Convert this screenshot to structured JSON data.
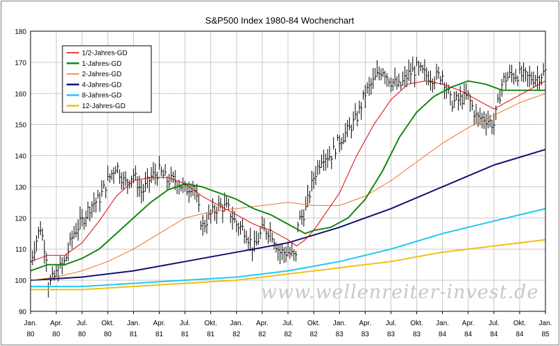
{
  "chart_data": {
    "type": "line",
    "title": "S&P500 Index 1980-84 Wochenchart",
    "watermark": "www.wellenreiter-invest.de",
    "ylim": [
      90,
      180
    ],
    "yticks": [
      90,
      100,
      110,
      120,
      130,
      140,
      150,
      160,
      170,
      180
    ],
    "x_range": [
      "1980-01",
      "1985-01"
    ],
    "x_ticks": [
      {
        "top": "Jan.",
        "bottom": "80"
      },
      {
        "top": "Apr.",
        "bottom": "80"
      },
      {
        "top": "Jul.",
        "bottom": "80"
      },
      {
        "top": "Okt.",
        "bottom": "80"
      },
      {
        "top": "Jan.",
        "bottom": "81"
      },
      {
        "top": "Apr.",
        "bottom": "81"
      },
      {
        "top": "Jul.",
        "bottom": "81"
      },
      {
        "top": "Okt.",
        "bottom": "81"
      },
      {
        "top": "Jan.",
        "bottom": "82"
      },
      {
        "top": "Apr.",
        "bottom": "82"
      },
      {
        "top": "Jul.",
        "bottom": "82"
      },
      {
        "top": "Okt.",
        "bottom": "82"
      },
      {
        "top": "Jan.",
        "bottom": "83"
      },
      {
        "top": "Apr.",
        "bottom": "83"
      },
      {
        "top": "Jul.",
        "bottom": "83"
      },
      {
        "top": "Okt.",
        "bottom": "83"
      },
      {
        "top": "Jan.",
        "bottom": "84"
      },
      {
        "top": "Apr.",
        "bottom": "84"
      },
      {
        "top": "Jul.",
        "bottom": "84"
      },
      {
        "top": "Okt.",
        "bottom": "84"
      },
      {
        "top": "Jan.",
        "bottom": "85"
      }
    ],
    "grid": true,
    "legend_position": "top-left",
    "price": {
      "style": "weekly-bars",
      "color": "#000000",
      "points": [
        [
          "1980-01",
          106
        ],
        [
          "1980-02",
          116
        ],
        [
          "1980-02",
          119
        ],
        [
          "1980-03",
          106
        ],
        [
          "1980-03",
          98
        ],
        [
          "1980-04",
          102
        ],
        [
          "1980-05",
          106
        ],
        [
          "1980-06",
          115
        ],
        [
          "1980-07",
          119
        ],
        [
          "1980-08",
          124
        ],
        [
          "1980-09",
          126
        ],
        [
          "1980-10",
          132
        ],
        [
          "1980-11",
          137
        ],
        [
          "1980-12",
          131
        ],
        [
          "1981-01",
          134
        ],
        [
          "1981-02",
          128
        ],
        [
          "1981-03",
          133
        ],
        [
          "1981-04",
          135
        ],
        [
          "1981-05",
          132
        ],
        [
          "1981-06",
          132
        ],
        [
          "1981-07",
          129
        ],
        [
          "1981-08",
          131
        ],
        [
          "1981-09",
          117
        ],
        [
          "1981-10",
          121
        ],
        [
          "1981-11",
          124
        ],
        [
          "1981-12",
          123
        ],
        [
          "1982-01",
          118
        ],
        [
          "1982-02",
          116
        ],
        [
          "1982-03",
          110
        ],
        [
          "1982-04",
          116
        ],
        [
          "1982-05",
          116
        ],
        [
          "1982-06",
          109
        ],
        [
          "1982-07",
          109
        ],
        [
          "1982-08",
          107
        ],
        [
          "1982-08",
          118
        ],
        [
          "1982-09",
          122
        ],
        [
          "1982-10",
          133
        ],
        [
          "1982-11",
          140
        ],
        [
          "1982-12",
          140
        ],
        [
          "1983-01",
          145
        ],
        [
          "1983-02",
          148
        ],
        [
          "1983-03",
          152
        ],
        [
          "1983-04",
          160
        ],
        [
          "1983-05",
          164
        ],
        [
          "1983-06",
          168
        ],
        [
          "1983-07",
          164
        ],
        [
          "1983-08",
          162
        ],
        [
          "1983-09",
          166
        ],
        [
          "1983-10",
          168
        ],
        [
          "1983-11",
          166
        ],
        [
          "1983-12",
          165
        ],
        [
          "1984-01",
          166
        ],
        [
          "1984-02",
          157
        ],
        [
          "1984-03",
          158
        ],
        [
          "1984-04",
          159
        ],
        [
          "1984-05",
          152
        ],
        [
          "1984-06",
          152
        ],
        [
          "1984-07",
          150
        ],
        [
          "1984-08",
          164
        ],
        [
          "1984-09",
          166
        ],
        [
          "1984-10",
          166
        ],
        [
          "1984-11",
          165
        ],
        [
          "1984-12",
          165
        ],
        [
          "1985-01",
          167
        ]
      ]
    },
    "series": [
      {
        "name": "1/2-Jahres-GD",
        "color": "#dd0000",
        "width": 1,
        "points": [
          [
            "1980-01",
            106
          ],
          [
            "1980-03",
            108
          ],
          [
            "1980-05",
            108
          ],
          [
            "1980-07",
            112
          ],
          [
            "1980-09",
            119
          ],
          [
            "1980-11",
            127
          ],
          [
            "1981-01",
            132
          ],
          [
            "1981-03",
            133
          ],
          [
            "1981-05",
            133
          ],
          [
            "1981-07",
            131
          ],
          [
            "1981-09",
            127
          ],
          [
            "1981-11",
            124
          ],
          [
            "1982-01",
            121
          ],
          [
            "1982-03",
            118
          ],
          [
            "1982-05",
            116
          ],
          [
            "1982-07",
            113
          ],
          [
            "1982-08",
            111
          ],
          [
            "1982-09",
            113
          ],
          [
            "1982-10",
            116
          ],
          [
            "1982-11",
            120
          ],
          [
            "1983-01",
            128
          ],
          [
            "1983-03",
            140
          ],
          [
            "1983-05",
            150
          ],
          [
            "1983-07",
            158
          ],
          [
            "1983-09",
            163
          ],
          [
            "1983-11",
            164
          ],
          [
            "1984-01",
            163
          ],
          [
            "1984-03",
            161
          ],
          [
            "1984-05",
            158
          ],
          [
            "1984-07",
            155
          ],
          [
            "1984-09",
            158
          ],
          [
            "1984-11",
            161
          ],
          [
            "1985-01",
            164
          ]
        ]
      },
      {
        "name": "1-Jahres-GD",
        "color": "#118811",
        "width": 2,
        "points": [
          [
            "1980-01",
            103
          ],
          [
            "1980-03",
            105
          ],
          [
            "1980-05",
            105
          ],
          [
            "1980-07",
            107
          ],
          [
            "1980-09",
            110
          ],
          [
            "1980-11",
            115
          ],
          [
            "1981-01",
            120
          ],
          [
            "1981-03",
            125
          ],
          [
            "1981-05",
            129
          ],
          [
            "1981-07",
            131
          ],
          [
            "1981-09",
            130
          ],
          [
            "1981-11",
            128
          ],
          [
            "1982-01",
            126
          ],
          [
            "1982-03",
            123
          ],
          [
            "1982-05",
            121
          ],
          [
            "1982-07",
            118
          ],
          [
            "1982-09",
            115
          ],
          [
            "1982-10",
            116
          ],
          [
            "1982-12",
            117
          ],
          [
            "1983-02",
            120
          ],
          [
            "1983-04",
            126
          ],
          [
            "1983-06",
            135
          ],
          [
            "1983-08",
            146
          ],
          [
            "1983-10",
            154
          ],
          [
            "1983-12",
            159
          ],
          [
            "1984-02",
            162
          ],
          [
            "1984-04",
            164
          ],
          [
            "1984-06",
            163
          ],
          [
            "1984-08",
            161
          ],
          [
            "1984-10",
            161
          ],
          [
            "1985-01",
            161
          ]
        ]
      },
      {
        "name": "2-Jahres-GD",
        "color": "#f07020",
        "width": 1,
        "points": [
          [
            "1980-01",
            100
          ],
          [
            "1980-04",
            101
          ],
          [
            "1980-07",
            103
          ],
          [
            "1980-10",
            106
          ],
          [
            "1981-01",
            110
          ],
          [
            "1981-04",
            115
          ],
          [
            "1981-07",
            120
          ],
          [
            "1981-10",
            122
          ],
          [
            "1982-01",
            123
          ],
          [
            "1982-04",
            124
          ],
          [
            "1982-07",
            125
          ],
          [
            "1982-10",
            124
          ],
          [
            "1983-01",
            124
          ],
          [
            "1983-04",
            127
          ],
          [
            "1983-07",
            132
          ],
          [
            "1983-10",
            138
          ],
          [
            "1984-01",
            144
          ],
          [
            "1984-04",
            149
          ],
          [
            "1984-07",
            153
          ],
          [
            "1984-10",
            157
          ],
          [
            "1985-01",
            160
          ]
        ]
      },
      {
        "name": "4-Jahres-GD",
        "color": "#101070",
        "width": 2,
        "points": [
          [
            "1980-01",
            100
          ],
          [
            "1980-07",
            101
          ],
          [
            "1981-01",
            103
          ],
          [
            "1981-07",
            106
          ],
          [
            "1982-01",
            109
          ],
          [
            "1982-07",
            112
          ],
          [
            "1983-01",
            117
          ],
          [
            "1983-07",
            123
          ],
          [
            "1984-01",
            130
          ],
          [
            "1984-07",
            137
          ],
          [
            "1985-01",
            142
          ]
        ]
      },
      {
        "name": "8-Jahres-GD",
        "color": "#20c8f0",
        "width": 2,
        "points": [
          [
            "1980-01",
            98
          ],
          [
            "1980-07",
            98
          ],
          [
            "1981-01",
            99
          ],
          [
            "1981-07",
            100
          ],
          [
            "1982-01",
            101
          ],
          [
            "1982-07",
            103
          ],
          [
            "1983-01",
            106
          ],
          [
            "1983-07",
            110
          ],
          [
            "1984-01",
            115
          ],
          [
            "1984-07",
            119
          ],
          [
            "1985-01",
            123
          ]
        ]
      },
      {
        "name": "12-Jahres-GD",
        "color": "#f0c010",
        "width": 2,
        "points": [
          [
            "1980-01",
            97
          ],
          [
            "1980-07",
            97
          ],
          [
            "1981-01",
            98
          ],
          [
            "1981-07",
            99
          ],
          [
            "1982-01",
            100
          ],
          [
            "1982-07",
            102
          ],
          [
            "1983-01",
            104
          ],
          [
            "1983-07",
            106
          ],
          [
            "1984-01",
            109
          ],
          [
            "1984-07",
            111
          ],
          [
            "1985-01",
            113
          ]
        ]
      }
    ]
  }
}
